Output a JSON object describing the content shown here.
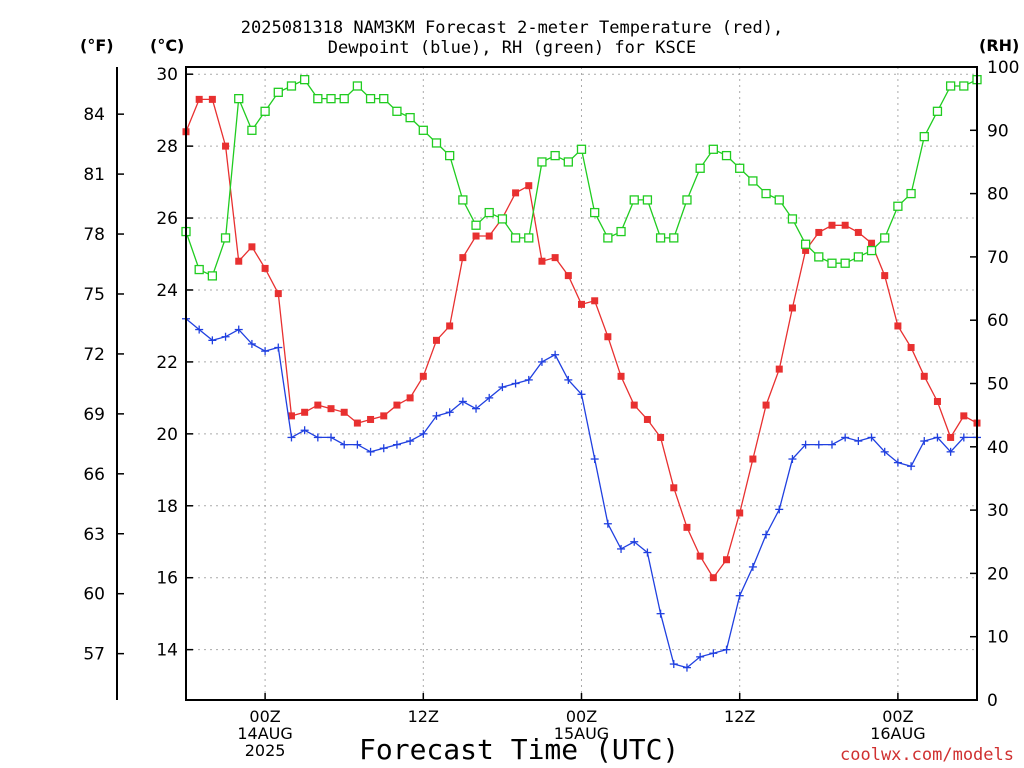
{
  "header": {
    "title_line1": "2025081318 NAM3KM Forecast 2-meter Temperature (red),",
    "title_line2": "Dewpoint (blue), RH (green) for KSCE"
  },
  "units": {
    "fahrenheit": "(°F)",
    "celsius": "(°C)",
    "rh": "(RH)"
  },
  "footer": {
    "xaxis_title": "Forecast Time (UTC)",
    "credit": "coolwx.com/models"
  },
  "colors": {
    "temperature": "#e83030",
    "dewpoint": "#2040e0",
    "rh": "#20cc20",
    "grid": "#aaaaaa",
    "axis": "#000000"
  },
  "chart_data": {
    "type": "line",
    "title": "2025081318 NAM3KM Forecast 2-meter Temperature (red), Dewpoint (blue), RH (green) for KSCE",
    "xlabel": "Forecast Time (UTC)",
    "x_unit": "hours since 2025-08-13 18Z",
    "x_range": [
      0,
      60
    ],
    "x_ticks": [
      {
        "hour": 6,
        "label": [
          "00Z",
          "14AUG",
          "2025"
        ]
      },
      {
        "hour": 18,
        "label": [
          "12Z"
        ]
      },
      {
        "hour": 30,
        "label": [
          "00Z",
          "15AUG"
        ]
      },
      {
        "hour": 42,
        "label": [
          "12Z"
        ]
      },
      {
        "hour": 54,
        "label": [
          "00Z",
          "16AUG"
        ]
      }
    ],
    "y_left_celsius": {
      "label": "(°C)",
      "range": [
        12.6,
        30.2
      ],
      "ticks": [
        14,
        16,
        18,
        20,
        22,
        24,
        26,
        28,
        30
      ]
    },
    "y_left_fahrenheit": {
      "label": "(°F)",
      "ticks": [
        57,
        60,
        63,
        66,
        69,
        72,
        75,
        78,
        81,
        84
      ]
    },
    "y_right_rh": {
      "label": "(RH)",
      "range": [
        0,
        100
      ],
      "ticks": [
        0,
        10,
        20,
        30,
        40,
        50,
        60,
        70,
        80,
        90,
        100
      ]
    },
    "grid": true,
    "series": [
      {
        "name": "Temperature",
        "axis": "celsius",
        "marker": "filled-square",
        "x": [
          0,
          1,
          2,
          3,
          4,
          5,
          6,
          7,
          8,
          9,
          10,
          11,
          12,
          13,
          14,
          15,
          16,
          17,
          18,
          19,
          20,
          21,
          22,
          23,
          24,
          25,
          26,
          27,
          28,
          29,
          30,
          31,
          32,
          33,
          34,
          35,
          36,
          37,
          38,
          39,
          40,
          41,
          42,
          43,
          44,
          45,
          46,
          47,
          48,
          49,
          50,
          51,
          52,
          53,
          54,
          55,
          56,
          57,
          58,
          59,
          60
        ],
        "values": [
          28.4,
          29.3,
          29.3,
          28.0,
          24.8,
          25.2,
          24.6,
          23.9,
          20.5,
          20.6,
          20.8,
          20.7,
          20.6,
          20.3,
          20.4,
          20.5,
          20.8,
          21.0,
          21.6,
          22.6,
          23.0,
          24.9,
          25.5,
          25.5,
          26.0,
          26.7,
          26.9,
          24.8,
          24.9,
          24.4,
          23.6,
          23.7,
          22.7,
          21.6,
          20.8,
          20.4,
          19.9,
          18.5,
          17.4,
          16.6,
          16.0,
          16.5,
          17.8,
          19.3,
          20.8,
          21.8,
          23.5,
          25.1,
          25.6,
          25.8,
          25.8,
          25.6,
          25.3,
          24.4,
          23.0,
          22.4,
          21.6,
          20.9,
          19.9,
          20.5,
          20.3
        ]
      },
      {
        "name": "Dewpoint",
        "axis": "celsius",
        "marker": "plus",
        "x": [
          0,
          1,
          2,
          3,
          4,
          5,
          6,
          7,
          8,
          9,
          10,
          11,
          12,
          13,
          14,
          15,
          16,
          17,
          18,
          19,
          20,
          21,
          22,
          23,
          24,
          25,
          26,
          27,
          28,
          29,
          30,
          31,
          32,
          33,
          34,
          35,
          36,
          37,
          38,
          39,
          40,
          41,
          42,
          43,
          44,
          45,
          46,
          47,
          48,
          49,
          50,
          51,
          52,
          53,
          54,
          55,
          56,
          57,
          58,
          59,
          60
        ],
        "values": [
          23.2,
          22.9,
          22.6,
          22.7,
          22.9,
          22.5,
          22.3,
          22.4,
          19.9,
          20.1,
          19.9,
          19.9,
          19.7,
          19.7,
          19.5,
          19.6,
          19.7,
          19.8,
          20.0,
          20.5,
          20.6,
          20.9,
          20.7,
          21.0,
          21.3,
          21.4,
          21.5,
          22.0,
          22.2,
          21.5,
          21.1,
          19.3,
          17.5,
          16.8,
          17.0,
          16.7,
          15.0,
          13.6,
          13.5,
          13.8,
          13.9,
          14.0,
          15.5,
          16.3,
          17.2,
          17.9,
          19.3,
          19.7,
          19.7,
          19.7,
          19.9,
          19.8,
          19.9,
          19.5,
          19.2,
          19.1,
          19.8,
          19.9,
          19.5,
          19.9,
          19.9
        ]
      },
      {
        "name": "RH",
        "axis": "rh",
        "marker": "open-square",
        "x": [
          0,
          1,
          2,
          3,
          4,
          5,
          6,
          7,
          8,
          9,
          10,
          11,
          12,
          13,
          14,
          15,
          16,
          17,
          18,
          19,
          20,
          21,
          22,
          23,
          24,
          25,
          26,
          27,
          28,
          29,
          30,
          31,
          32,
          33,
          34,
          35,
          36,
          37,
          38,
          39,
          40,
          41,
          42,
          43,
          44,
          45,
          46,
          47,
          48,
          49,
          50,
          51,
          52,
          53,
          54,
          55,
          56,
          57,
          58,
          59,
          60
        ],
        "values": [
          74,
          68,
          67,
          73,
          95,
          90,
          93,
          96,
          97,
          98,
          95,
          95,
          95,
          97,
          95,
          95,
          93,
          92,
          90,
          88,
          86,
          79,
          75,
          77,
          76,
          73,
          73,
          85,
          86,
          85,
          87,
          77,
          73,
          74,
          79,
          79,
          73,
          73,
          79,
          84,
          87,
          86,
          84,
          82,
          80,
          79,
          76,
          72,
          70,
          69,
          69,
          70,
          71,
          73,
          78,
          80,
          89,
          93,
          97,
          97,
          98
        ]
      }
    ]
  }
}
